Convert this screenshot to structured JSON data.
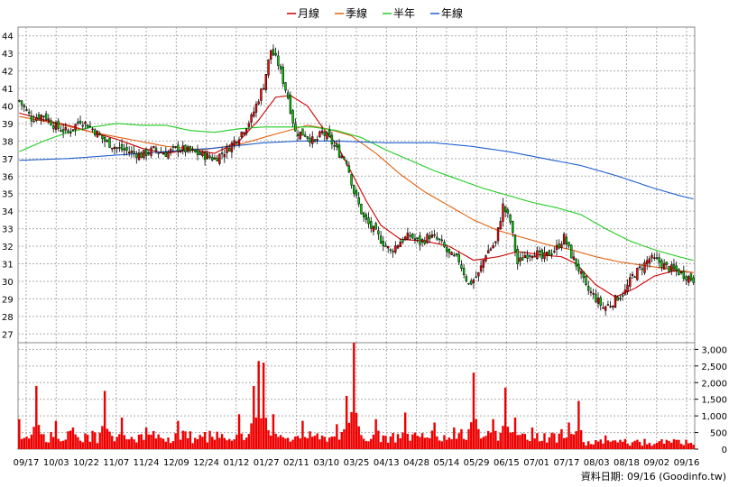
{
  "chart_data": {
    "type": "candlestick",
    "legend": [
      {
        "name": "月線",
        "color": "#cc0000"
      },
      {
        "name": "季線",
        "color": "#e06010"
      },
      {
        "name": "半年",
        "color": "#22cc22"
      },
      {
        "name": "年線",
        "color": "#1f5fd0"
      }
    ],
    "price_axis": {
      "ylim": [
        26.5,
        44.5
      ],
      "ticks": [
        27,
        28,
        29,
        30,
        31,
        32,
        33,
        34,
        35,
        36,
        37,
        38,
        39,
        40,
        41,
        42,
        43,
        44
      ]
    },
    "volume_axis": {
      "ylim": [
        0,
        3200
      ],
      "ticks": [
        0,
        500,
        1000,
        1500,
        2000,
        2500,
        3000
      ],
      "tick_labels": [
        "0",
        "500",
        "1,000",
        "1,500",
        "2,000",
        "2,500",
        "3,000"
      ]
    },
    "x_labels": [
      "09/17",
      "10/03",
      "10/22",
      "11/07",
      "11/24",
      "12/09",
      "12/24",
      "01/12",
      "01/27",
      "02/11",
      "03/10",
      "03/25",
      "04/13",
      "04/28",
      "05/14",
      "05/29",
      "06/15",
      "07/01",
      "07/17",
      "08/03",
      "08/18",
      "09/02",
      "09/16"
    ],
    "up_color": "#ff0000",
    "down_color": "#00cc00",
    "volume_color": "#ee0000",
    "key_closes": [
      [
        0,
        40.3
      ],
      [
        5,
        39.3
      ],
      [
        10,
        39.5
      ],
      [
        15,
        38.8
      ],
      [
        20,
        38.5
      ],
      [
        25,
        39.2
      ],
      [
        30,
        38.7
      ],
      [
        35,
        38.0
      ],
      [
        40,
        37.6
      ],
      [
        45,
        37.4
      ],
      [
        50,
        37.2
      ],
      [
        55,
        37.5
      ],
      [
        60,
        37.3
      ],
      [
        65,
        37.6
      ],
      [
        70,
        37.4
      ],
      [
        75,
        37.2
      ],
      [
        80,
        37.0
      ],
      [
        85,
        37.5
      ],
      [
        90,
        38.3
      ],
      [
        95,
        39.3
      ],
      [
        100,
        41.2
      ],
      [
        103,
        43.2
      ],
      [
        106,
        42.4
      ],
      [
        110,
        40.5
      ],
      [
        113,
        38.5
      ],
      [
        117,
        38.4
      ],
      [
        121,
        37.9
      ],
      [
        124,
        38.5
      ],
      [
        127,
        38.1
      ],
      [
        131,
        37.3
      ],
      [
        134,
        36.9
      ],
      [
        137,
        35.1
      ],
      [
        141,
        33.6
      ],
      [
        145,
        32.9
      ],
      [
        149,
        32.2
      ],
      [
        152,
        31.7
      ],
      [
        156,
        32.3
      ],
      [
        160,
        32.6
      ],
      [
        164,
        32.2
      ],
      [
        168,
        32.6
      ],
      [
        172,
        32.3
      ],
      [
        176,
        31.5
      ],
      [
        180,
        31.2
      ],
      [
        184,
        29.8
      ],
      [
        188,
        30.4
      ],
      [
        191,
        31.6
      ],
      [
        195,
        32.2
      ],
      [
        198,
        34.3
      ],
      [
        201,
        33.4
      ],
      [
        204,
        31.0
      ],
      [
        207,
        31.5
      ],
      [
        211,
        31.7
      ],
      [
        214,
        31.3
      ],
      [
        217,
        31.6
      ],
      [
        220,
        31.9
      ],
      [
        223,
        32.5
      ],
      [
        226,
        31.5
      ],
      [
        229,
        30.7
      ],
      [
        232,
        29.6
      ],
      [
        235,
        29.2
      ],
      [
        239,
        28.5
      ],
      [
        242,
        28.7
      ],
      [
        245,
        29.1
      ],
      [
        248,
        29.4
      ],
      [
        251,
        30.3
      ],
      [
        254,
        30.7
      ],
      [
        258,
        31.3
      ],
      [
        262,
        31.1
      ],
      [
        265,
        30.8
      ],
      [
        269,
        30.6
      ],
      [
        273,
        30.3
      ],
      [
        276,
        30.1
      ]
    ],
    "ma_month": [
      [
        0,
        39.6
      ],
      [
        10,
        39.2
      ],
      [
        20,
        38.9
      ],
      [
        30,
        38.5
      ],
      [
        40,
        38.1
      ],
      [
        50,
        37.6
      ],
      [
        60,
        37.3
      ],
      [
        70,
        37.5
      ],
      [
        80,
        37.3
      ],
      [
        90,
        38.0
      ],
      [
        98,
        39.2
      ],
      [
        105,
        40.5
      ],
      [
        111,
        40.6
      ],
      [
        118,
        40.0
      ],
      [
        124,
        38.8
      ],
      [
        130,
        37.8
      ],
      [
        136,
        36.2
      ],
      [
        142,
        34.6
      ],
      [
        148,
        33.2
      ],
      [
        156,
        32.4
      ],
      [
        166,
        32.3
      ],
      [
        176,
        32.0
      ],
      [
        186,
        31.2
      ],
      [
        196,
        31.4
      ],
      [
        204,
        31.7
      ],
      [
        214,
        31.5
      ],
      [
        222,
        31.4
      ],
      [
        228,
        31.0
      ],
      [
        236,
        29.8
      ],
      [
        244,
        29.1
      ],
      [
        252,
        29.6
      ],
      [
        260,
        30.3
      ],
      [
        268,
        30.6
      ],
      [
        276,
        30.5
      ]
    ],
    "ma_quarter": [
      [
        0,
        39.4
      ],
      [
        15,
        39.0
      ],
      [
        30,
        38.5
      ],
      [
        45,
        38.1
      ],
      [
        60,
        37.7
      ],
      [
        75,
        37.5
      ],
      [
        90,
        37.8
      ],
      [
        105,
        38.4
      ],
      [
        118,
        38.9
      ],
      [
        126,
        38.7
      ],
      [
        136,
        38.3
      ],
      [
        146,
        37.3
      ],
      [
        156,
        36.1
      ],
      [
        166,
        35.1
      ],
      [
        176,
        34.3
      ],
      [
        186,
        33.5
      ],
      [
        196,
        32.9
      ],
      [
        206,
        32.5
      ],
      [
        216,
        32.1
      ],
      [
        226,
        31.8
      ],
      [
        236,
        31.4
      ],
      [
        246,
        31.1
      ],
      [
        256,
        30.9
      ],
      [
        266,
        30.7
      ],
      [
        276,
        30.5
      ]
    ],
    "ma_half": [
      [
        0,
        37.4
      ],
      [
        10,
        38.0
      ],
      [
        20,
        38.5
      ],
      [
        30,
        38.8
      ],
      [
        40,
        39.0
      ],
      [
        50,
        38.9
      ],
      [
        60,
        38.9
      ],
      [
        70,
        38.6
      ],
      [
        80,
        38.5
      ],
      [
        90,
        38.7
      ],
      [
        100,
        38.8
      ],
      [
        110,
        38.8
      ],
      [
        120,
        38.8
      ],
      [
        130,
        38.6
      ],
      [
        140,
        38.2
      ],
      [
        150,
        37.5
      ],
      [
        160,
        36.9
      ],
      [
        170,
        36.3
      ],
      [
        180,
        35.8
      ],
      [
        190,
        35.3
      ],
      [
        200,
        34.9
      ],
      [
        210,
        34.5
      ],
      [
        220,
        34.2
      ],
      [
        230,
        33.8
      ],
      [
        240,
        33.0
      ],
      [
        250,
        32.3
      ],
      [
        260,
        31.8
      ],
      [
        270,
        31.4
      ],
      [
        276,
        31.2
      ]
    ],
    "ma_year": [
      [
        0,
        36.9
      ],
      [
        20,
        37.0
      ],
      [
        40,
        37.2
      ],
      [
        60,
        37.4
      ],
      [
        80,
        37.6
      ],
      [
        100,
        37.9
      ],
      [
        115,
        38.0
      ],
      [
        130,
        38.0
      ],
      [
        150,
        37.9
      ],
      [
        170,
        37.9
      ],
      [
        185,
        37.7
      ],
      [
        200,
        37.4
      ],
      [
        215,
        37.0
      ],
      [
        230,
        36.6
      ],
      [
        245,
        36.0
      ],
      [
        260,
        35.3
      ],
      [
        270,
        34.9
      ],
      [
        276,
        34.7
      ]
    ],
    "volume_peaks": [
      [
        0,
        900
      ],
      [
        7,
        1900
      ],
      [
        15,
        850
      ],
      [
        22,
        650
      ],
      [
        35,
        1750
      ],
      [
        42,
        950
      ],
      [
        52,
        650
      ],
      [
        65,
        850
      ],
      [
        78,
        550
      ],
      [
        90,
        1050
      ],
      [
        96,
        1900
      ],
      [
        98,
        2650
      ],
      [
        100,
        2600
      ],
      [
        104,
        1050
      ],
      [
        116,
        850
      ],
      [
        130,
        750
      ],
      [
        134,
        1600
      ],
      [
        137,
        3200
      ],
      [
        146,
        900
      ],
      [
        158,
        1100
      ],
      [
        170,
        800
      ],
      [
        178,
        650
      ],
      [
        181,
        600
      ],
      [
        186,
        2300
      ],
      [
        194,
        900
      ],
      [
        199,
        1850
      ],
      [
        203,
        950
      ],
      [
        210,
        650
      ],
      [
        222,
        600
      ],
      [
        225,
        800
      ],
      [
        229,
        1450
      ],
      [
        233,
        400
      ],
      [
        240,
        750
      ],
      [
        248,
        550
      ],
      [
        256,
        350
      ],
      [
        266,
        200
      ],
      [
        276,
        150
      ]
    ],
    "credit": "資料日期: 09/16  (Goodinfo.tw)"
  }
}
